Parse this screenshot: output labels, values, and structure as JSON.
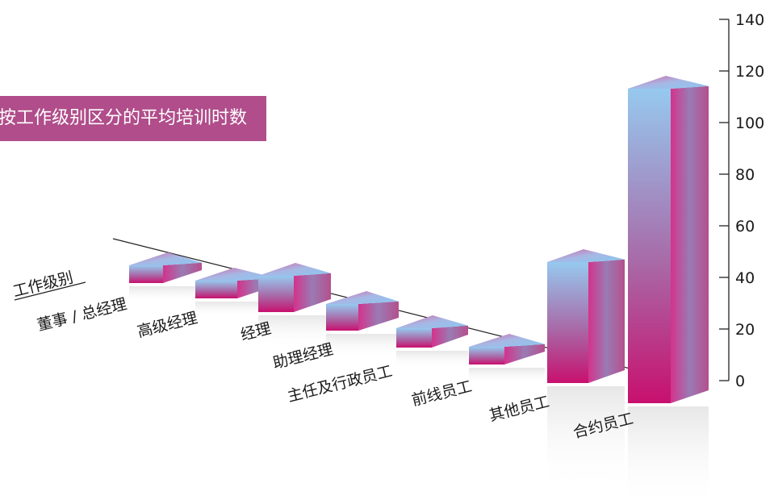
{
  "chart_data": {
    "type": "bar",
    "title": "按工作级别区分的平均培训时数",
    "xlabel": "工作级别",
    "ylabel": "",
    "categories": [
      "董事 / 总经理",
      "高级经理",
      "经理",
      "助理经理",
      "主任及行政员工",
      "前线员工",
      "其他员工",
      "合约员工"
    ],
    "values": [
      6,
      5,
      15,
      11,
      8,
      3,
      50,
      130
    ],
    "ylim": [
      0,
      140
    ],
    "yticks": [
      0,
      20,
      40,
      60,
      80,
      100,
      120,
      140
    ],
    "grid": false,
    "legend": "none",
    "style": "3d-column"
  },
  "colors": {
    "banner": "#b04d8a",
    "bar_top": "#8ecbf0",
    "bar_bottom": "#c8126f"
  }
}
